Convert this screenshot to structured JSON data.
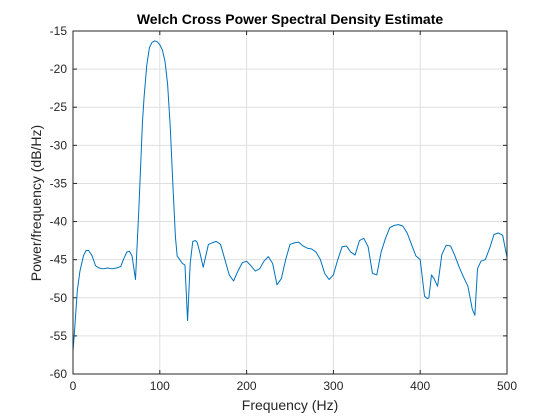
{
  "chart_data": {
    "type": "line",
    "title": "Welch Cross Power Spectral Density Estimate",
    "xlabel": "Frequency (Hz)",
    "ylabel": "Power/frequency (dB/Hz)",
    "xlim": [
      0,
      500
    ],
    "ylim": [
      -60,
      -15
    ],
    "xticks": [
      0,
      100,
      200,
      300,
      400,
      500
    ],
    "yticks": [
      -60,
      -55,
      -50,
      -45,
      -40,
      -35,
      -30,
      -25,
      -20,
      -15
    ],
    "grid": true,
    "legend": "none",
    "colors": {
      "series": "#0072bd",
      "axes": "#262626",
      "grid": "#dfdfdf"
    },
    "series": [
      {
        "x": [
          0,
          2,
          5,
          8,
          12,
          15,
          18,
          22,
          26,
          30,
          35,
          40,
          45,
          50,
          55,
          58,
          62,
          65,
          68,
          72,
          76,
          80,
          82,
          85,
          88,
          91,
          94,
          97,
          100,
          103,
          106,
          109,
          112,
          115,
          118,
          120,
          123,
          126,
          129,
          132,
          135,
          138,
          141,
          143,
          146,
          150,
          153,
          156,
          160,
          165,
          170,
          175,
          180,
          185,
          190,
          195,
          200,
          205,
          210,
          215,
          220,
          225,
          230,
          235,
          240,
          245,
          250,
          255,
          260,
          265,
          270,
          275,
          280,
          285,
          290,
          295,
          300,
          305,
          310,
          315,
          320,
          325,
          330,
          335,
          340,
          345,
          350,
          355,
          360,
          365,
          370,
          375,
          380,
          385,
          390,
          395,
          400,
          405,
          408,
          410,
          413,
          416,
          420,
          425,
          430,
          435,
          440,
          445,
          450,
          455,
          460,
          463,
          466,
          470,
          475,
          480,
          485,
          490,
          495,
          500
        ],
        "y": [
          -57,
          -54,
          -49,
          -46.5,
          -44.5,
          -43.8,
          -43.8,
          -44.5,
          -45.8,
          -46.1,
          -46.2,
          -46.1,
          -46.2,
          -46.1,
          -45.9,
          -45,
          -44,
          -43.9,
          -44.5,
          -47.6,
          -38,
          -27,
          -23.5,
          -19.5,
          -17.2,
          -16.5,
          -16.3,
          -16.4,
          -16.8,
          -17.5,
          -19,
          -22,
          -27.5,
          -35,
          -42,
          -44.5,
          -45,
          -45.5,
          -45.7,
          -53,
          -45.5,
          -42.6,
          -42.5,
          -42.7,
          -44,
          -46,
          -44.5,
          -43,
          -42.8,
          -42.6,
          -43,
          -45,
          -47,
          -47.8,
          -46.5,
          -45.4,
          -45.2,
          -45.8,
          -46.5,
          -46.2,
          -45.2,
          -44.6,
          -45.5,
          -48.3,
          -47.5,
          -45,
          -43,
          -42.8,
          -42.7,
          -43.2,
          -43.5,
          -43.6,
          -44,
          -45,
          -46.8,
          -47.6,
          -47,
          -45,
          -43.3,
          -43.2,
          -44,
          -44.4,
          -42.5,
          -42.2,
          -43.3,
          -46.8,
          -47,
          -44,
          -42.2,
          -40.8,
          -40.5,
          -40.4,
          -40.6,
          -41.5,
          -43,
          -44.5,
          -45,
          -49.8,
          -50.1,
          -50,
          -47,
          -47.5,
          -48.5,
          -44.3,
          -43.1,
          -43.2,
          -44.5,
          -46,
          -47.3,
          -48.5,
          -51.5,
          -52.3,
          -46.2,
          -45.2,
          -45,
          -43.5,
          -41.7,
          -41.5,
          -41.8,
          -44.7
        ]
      }
    ]
  }
}
